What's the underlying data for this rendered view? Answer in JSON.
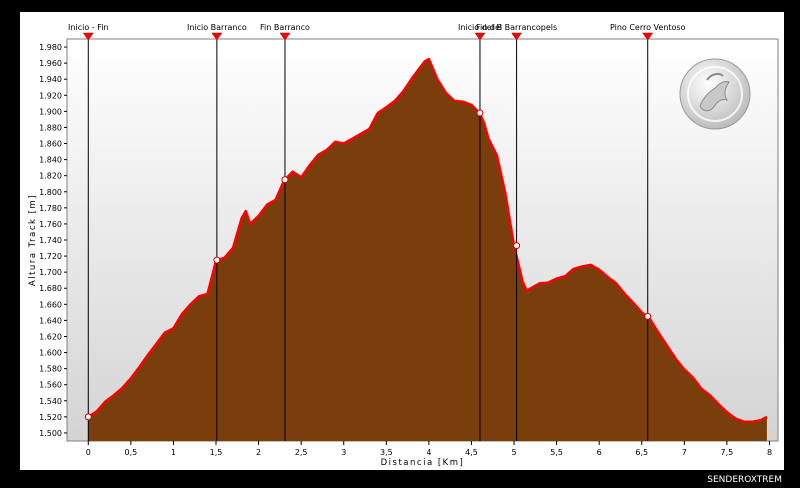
{
  "brand": "SENDEROXTREM",
  "colors": {
    "fill": "#7a3e0c",
    "line": "#ff0000",
    "plot_bg_top": "#ffffff",
    "plot_bg_bottom": "#d4d4d4"
  },
  "chart_data": {
    "type": "area",
    "xlabel": "Distancia [Km]",
    "ylabel": "Altura Track [m]",
    "xlim": [
      -0.25,
      8.1
    ],
    "ylim": [
      1490,
      1990
    ],
    "x_ticks": [
      0,
      0.5,
      1,
      1.5,
      2,
      2.5,
      3,
      3.5,
      4,
      4.5,
      5,
      5.5,
      6,
      6.5,
      7,
      7.5,
      8
    ],
    "x_tick_labels": [
      "0",
      "0,5",
      "1",
      "1,5",
      "2",
      "2,5",
      "3",
      "3,5",
      "4",
      "4,5",
      "5",
      "5,5",
      "6",
      "6,5",
      "7",
      "7,5",
      "8"
    ],
    "y_ticks": [
      1500,
      1520,
      1540,
      1560,
      1580,
      1600,
      1620,
      1640,
      1660,
      1680,
      1700,
      1720,
      1740,
      1760,
      1780,
      1800,
      1820,
      1840,
      1860,
      1880,
      1900,
      1920,
      1940,
      1960,
      1980
    ],
    "y_tick_labels": [
      "1.500",
      "1.520",
      "1.540",
      "1.560",
      "1.580",
      "1.600",
      "1.620",
      "1.640",
      "1.660",
      "1.680",
      "1.700",
      "1.720",
      "1.740",
      "1.760",
      "1.780",
      "1.800",
      "1.820",
      "1.840",
      "1.860",
      "1.880",
      "1.900",
      "1.920",
      "1.940",
      "1.960",
      "1.980"
    ],
    "grid": false,
    "series": [
      {
        "x": [
          0,
          0.1,
          0.2,
          0.3,
          0.4,
          0.5,
          0.6,
          0.7,
          0.8,
          0.9,
          1.0,
          1.1,
          1.2,
          1.3,
          1.4,
          1.5,
          1.6,
          1.7,
          1.8,
          1.85,
          1.9,
          2.0,
          2.1,
          2.2,
          2.3,
          2.4,
          2.5,
          2.6,
          2.7,
          2.8,
          2.9,
          3.0,
          3.1,
          3.2,
          3.3,
          3.4,
          3.5,
          3.6,
          3.7,
          3.8,
          3.9,
          3.95,
          4.0,
          4.1,
          4.2,
          4.3,
          4.4,
          4.5,
          4.6,
          4.65,
          4.7,
          4.8,
          4.9,
          5.0,
          5.05,
          5.1,
          5.15,
          5.2,
          5.3,
          5.4,
          5.5,
          5.6,
          5.7,
          5.8,
          5.9,
          6.0,
          6.1,
          6.2,
          6.3,
          6.4,
          6.5,
          6.6,
          6.7,
          6.8,
          6.9,
          7.0,
          7.1,
          7.2,
          7.3,
          7.4,
          7.5,
          7.6,
          7.7,
          7.8,
          7.9,
          7.97
        ],
        "y": [
          1520,
          1527,
          1539,
          1547,
          1556,
          1568,
          1582,
          1597,
          1611,
          1625,
          1630,
          1648,
          1660,
          1670,
          1673,
          1714,
          1718,
          1730,
          1767,
          1776,
          1760,
          1770,
          1784,
          1790,
          1814,
          1825,
          1818,
          1833,
          1846,
          1852,
          1862,
          1860,
          1866,
          1872,
          1878,
          1898,
          1905,
          1913,
          1925,
          1941,
          1955,
          1962,
          1965,
          1940,
          1923,
          1913,
          1912,
          1908,
          1897,
          1885,
          1866,
          1845,
          1797,
          1733,
          1711,
          1688,
          1677,
          1680,
          1686,
          1687,
          1692,
          1695,
          1704,
          1707,
          1709,
          1703,
          1694,
          1686,
          1673,
          1662,
          1650,
          1641,
          1624,
          1608,
          1592,
          1579,
          1569,
          1555,
          1547,
          1536,
          1526,
          1518,
          1514,
          1514,
          1516,
          1520
        ]
      }
    ],
    "waypoints": [
      {
        "label": "Inicio - Fin",
        "x": 0,
        "y": 1520
      },
      {
        "label": "Inicio Barranco",
        "x": 1.51,
        "y": 1715
      },
      {
        "label": "Fin Barranco",
        "x": 2.31,
        "y": 1815
      },
      {
        "label": "Inicio del B",
        "x": 4.6,
        "y": 1898
      },
      {
        "label": "Fin del Barrancopels",
        "x": 5.03,
        "y": 1733
      },
      {
        "label": "Pino Cerro Ventoso",
        "x": 6.57,
        "y": 1645
      }
    ]
  }
}
